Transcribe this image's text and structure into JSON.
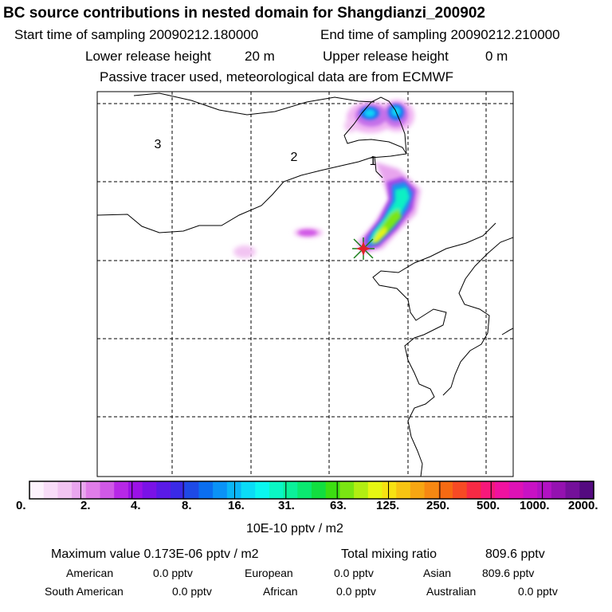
{
  "header": {
    "title": "BC  source contributions in nested domain for Shangdianzi_200902",
    "start_label": "Start time of sampling 20090212.180000",
    "end_label": "End time of sampling 20090212.210000",
    "lower_label": "Lower release height",
    "lower_value": "20 m",
    "upper_label": "Upper release height",
    "upper_value": "0 m",
    "tracer_line": "Passive tracer used, meteorological data are from ECMWF"
  },
  "map": {
    "region_labels": [
      "3",
      "2",
      "1"
    ],
    "colors": {
      "frame": "#000000",
      "grid": "#000000",
      "coast": "#000000",
      "receptor_fill": "#e0202a",
      "receptor_cross": "#1a7f1a"
    }
  },
  "colorbar": {
    "tick_labels": [
      "0.",
      "2.",
      "4.",
      "8.",
      "16.",
      "31.",
      "63.",
      "125.",
      "250.",
      "500.",
      "1000.",
      "2000."
    ],
    "colors": [
      "#fdf2fd",
      "#f8dcf8",
      "#f2c4f2",
      "#e9a6ee",
      "#e07de8",
      "#d059e6",
      "#b728e6",
      "#9b12e6",
      "#7a12e6",
      "#5a1ae6",
      "#3a2ae6",
      "#1e4ae6",
      "#0a6ef0",
      "#0a92f6",
      "#0ab6f6",
      "#0adcf6",
      "#0af6f0",
      "#0af6c4",
      "#0af09a",
      "#0ae870",
      "#12de40",
      "#3cde12",
      "#7ae612",
      "#b2ee12",
      "#e6f612",
      "#f6e212",
      "#f6c412",
      "#f6a612",
      "#f68812",
      "#f66a12",
      "#f64a24",
      "#f62a44",
      "#f6187a",
      "#f012a0",
      "#de12b6",
      "#c812c4",
      "#b212c4",
      "#9412b0",
      "#74109a",
      "#540a80"
    ],
    "unit": "10E-10 pptv / m2"
  },
  "summary": {
    "max_label": "Maximum value  0.173E-06 pptv / m2",
    "total_label": "Total mixing ratio",
    "total_value": "809.6 pptv",
    "regions": [
      {
        "name": "American",
        "value": "0.0 pptv"
      },
      {
        "name": "European",
        "value": "0.0 pptv"
      },
      {
        "name": "Asian",
        "value": "809.6 pptv"
      },
      {
        "name": "South American",
        "value": "0.0 pptv"
      },
      {
        "name": "African",
        "value": "0.0 pptv"
      },
      {
        "name": "Australian",
        "value": "0.0 pptv"
      }
    ]
  }
}
